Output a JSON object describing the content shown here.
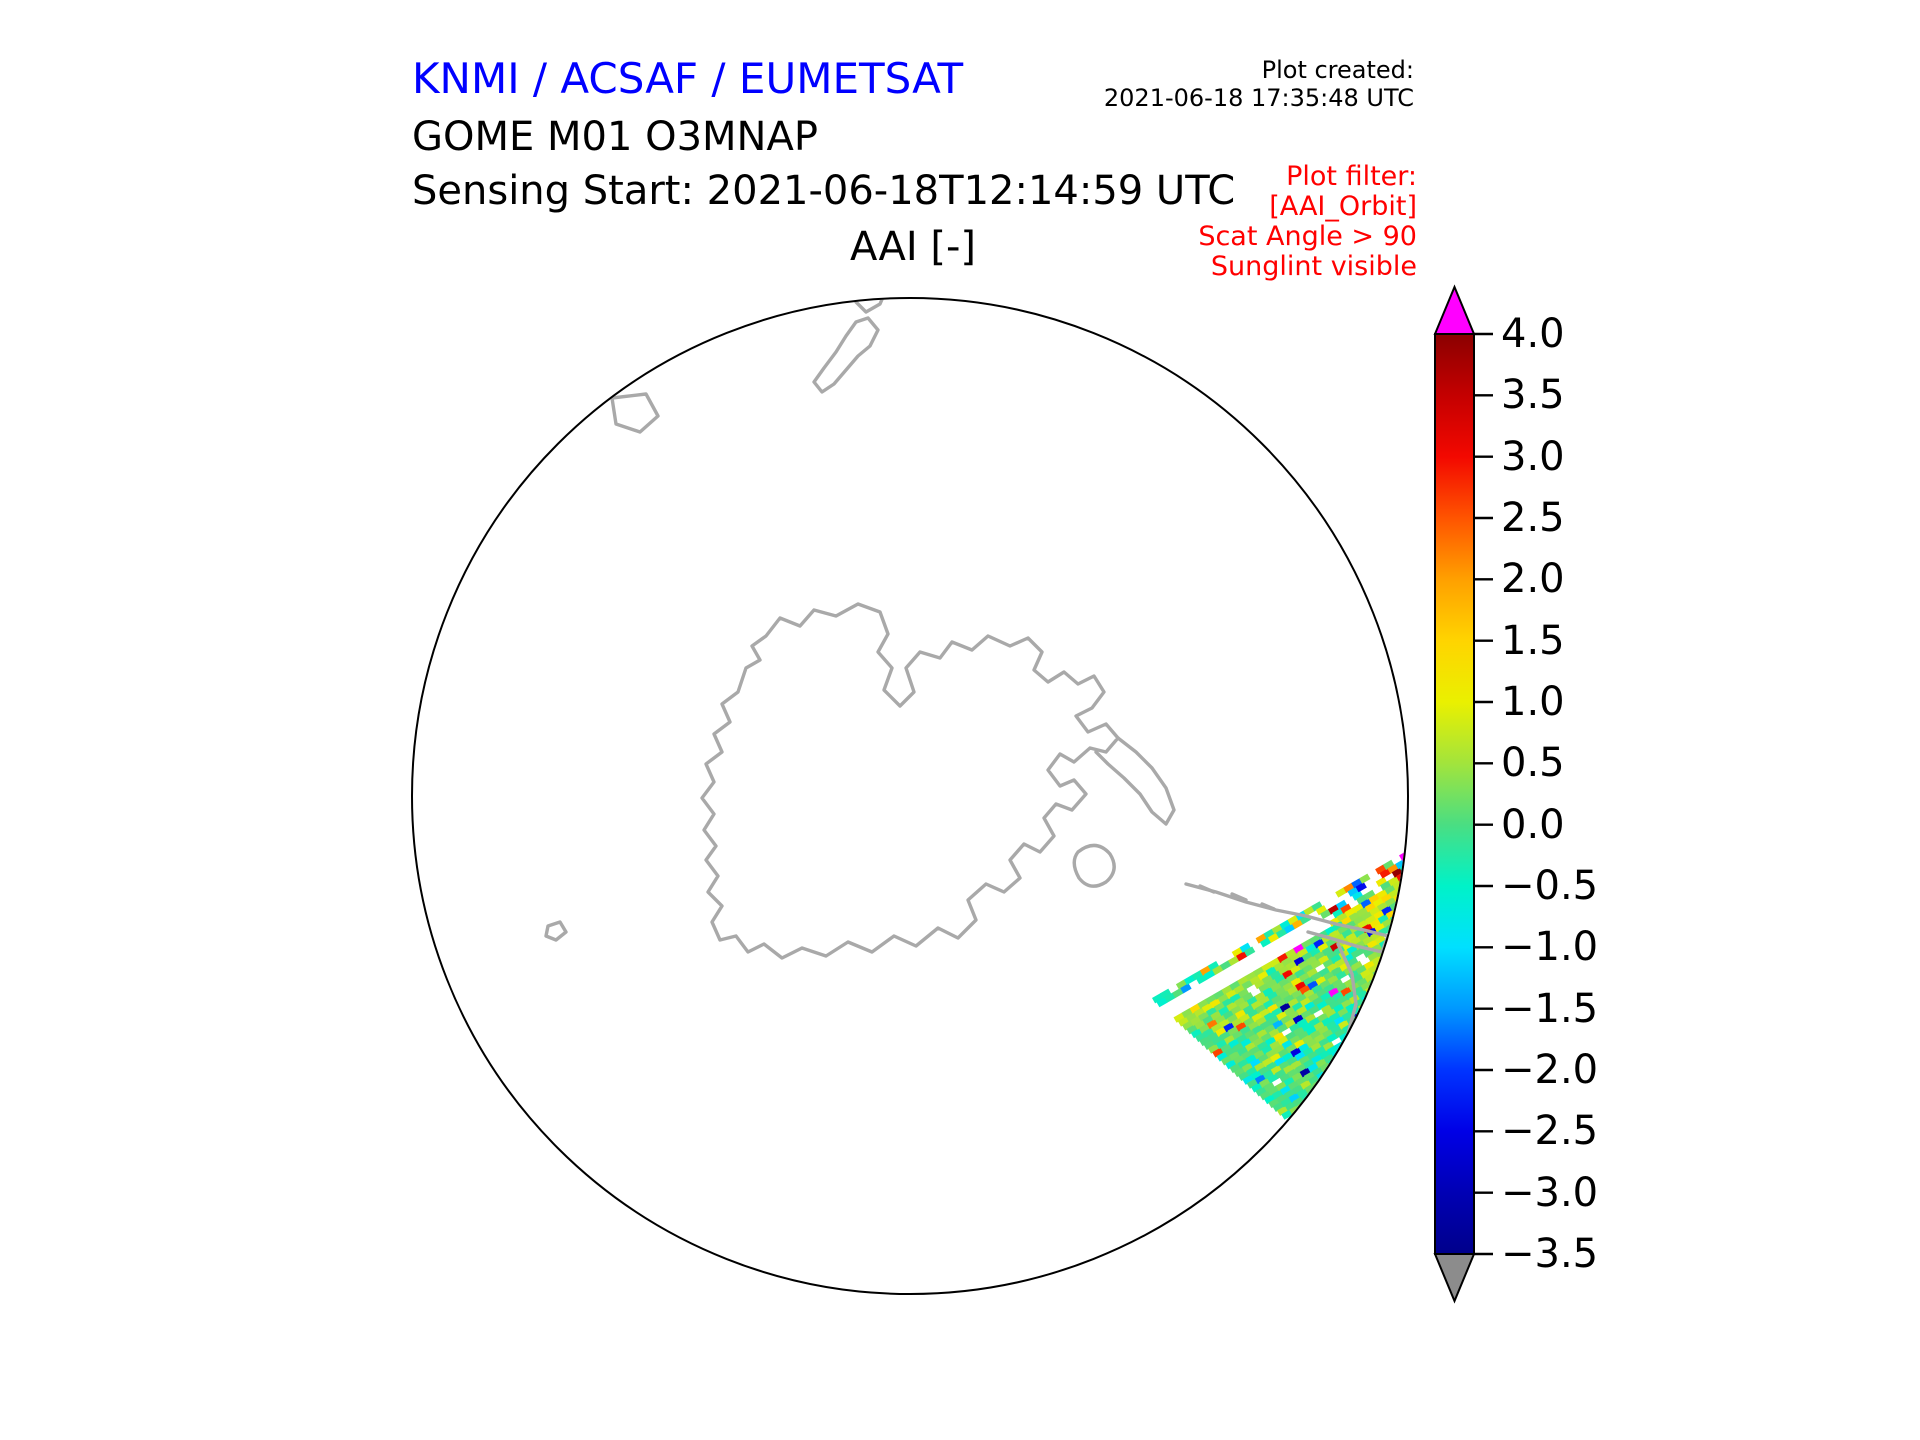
{
  "header": {
    "agency_title": "KNMI / ACSAF / EUMETSAT",
    "plot_created_label": "Plot created:",
    "plot_created_value": "2021-06-18 17:35:48 UTC",
    "product_line1": "GOME M01 O3MNAP",
    "product_line2": "Sensing Start: 2021-06-18T12:14:59 UTC"
  },
  "plot_filter": {
    "lines": [
      "Plot filter:",
      "[AAI_Orbit]",
      "Scat Angle > 90",
      "Sunglint visible"
    ],
    "color": "#ff0000"
  },
  "map": {
    "title": "AAI [-]",
    "projection": "south polar stereographic",
    "boundary_color": "#000000",
    "coastline_color": "#a9a9a9"
  },
  "colorbar": {
    "tick_labels": [
      "4.0",
      "3.5",
      "3.0",
      "2.5",
      "2.0",
      "1.5",
      "1.0",
      "0.5",
      "0.0",
      "−0.5",
      "−1.0",
      "−1.5",
      "−2.0",
      "−2.5",
      "−3.0",
      "−3.5"
    ],
    "tick_values": [
      4.0,
      3.5,
      3.0,
      2.5,
      2.0,
      1.5,
      1.0,
      0.5,
      0.0,
      -0.5,
      -1.0,
      -1.5,
      -2.0,
      -2.5,
      -3.0,
      -3.5
    ],
    "over_color": "#ff00ff",
    "under_color": "#8c8c8c",
    "stops": [
      {
        "v": -3.5,
        "c": "#00008b"
      },
      {
        "v": -3.0,
        "c": "#0000b4"
      },
      {
        "v": -2.5,
        "c": "#0000e6"
      },
      {
        "v": -2.0,
        "c": "#0034ff"
      },
      {
        "v": -1.5,
        "c": "#0098ff"
      },
      {
        "v": -1.0,
        "c": "#00e0ff"
      },
      {
        "v": -0.5,
        "c": "#00f2c8"
      },
      {
        "v": 0.0,
        "c": "#4ade82"
      },
      {
        "v": 0.5,
        "c": "#a2e43c"
      },
      {
        "v": 1.0,
        "c": "#eaf000"
      },
      {
        "v": 1.5,
        "c": "#ffd400"
      },
      {
        "v": 2.0,
        "c": "#ffa000"
      },
      {
        "v": 2.5,
        "c": "#ff5400"
      },
      {
        "v": 3.0,
        "c": "#f30800"
      },
      {
        "v": 3.5,
        "c": "#c40000"
      },
      {
        "v": 4.0,
        "c": "#8b0000"
      }
    ]
  },
  "chart_data": {
    "type": "heatmap",
    "title": "AAI [-]",
    "subtitle": "GOME M01 O3MNAP — Sensing Start: 2021-06-18T12:14:59 UTC",
    "projection": "south polar stereographic (Antarctica centered)",
    "series": [
      {
        "name": "AAI orbit swath",
        "description": "Single GOME-2/Metop-B absorbing aerosol index swath over the Weddell Sea / Antarctic Peninsula sector (lower-right of disc), values mostly between -1.0 and +1.2 (green/cyan/yellow), noisy scattered outliers from -3.5 to >4 along the scan edge, with one thin parallel stripe separated from the main swath by a data gap"
      }
    ],
    "value_range": [
      -3.5,
      4.0
    ],
    "colorbar_ticks": [
      4.0,
      3.5,
      3.0,
      2.5,
      2.0,
      1.5,
      1.0,
      0.5,
      0.0,
      -0.5,
      -1.0,
      -1.5,
      -2.0,
      -2.5,
      -3.0,
      -3.5
    ],
    "colorbar_over": ">4.0 magenta",
    "colorbar_under": "<-3.5 grey",
    "annotations": [
      "Plot filter:",
      "[AAI_Orbit]",
      "Scat Angle > 90",
      "Sunglint visible",
      "Plot created:",
      "2021-06-18 17:35:48 UTC"
    ],
    "legend_position": "right vertical colorbar"
  }
}
